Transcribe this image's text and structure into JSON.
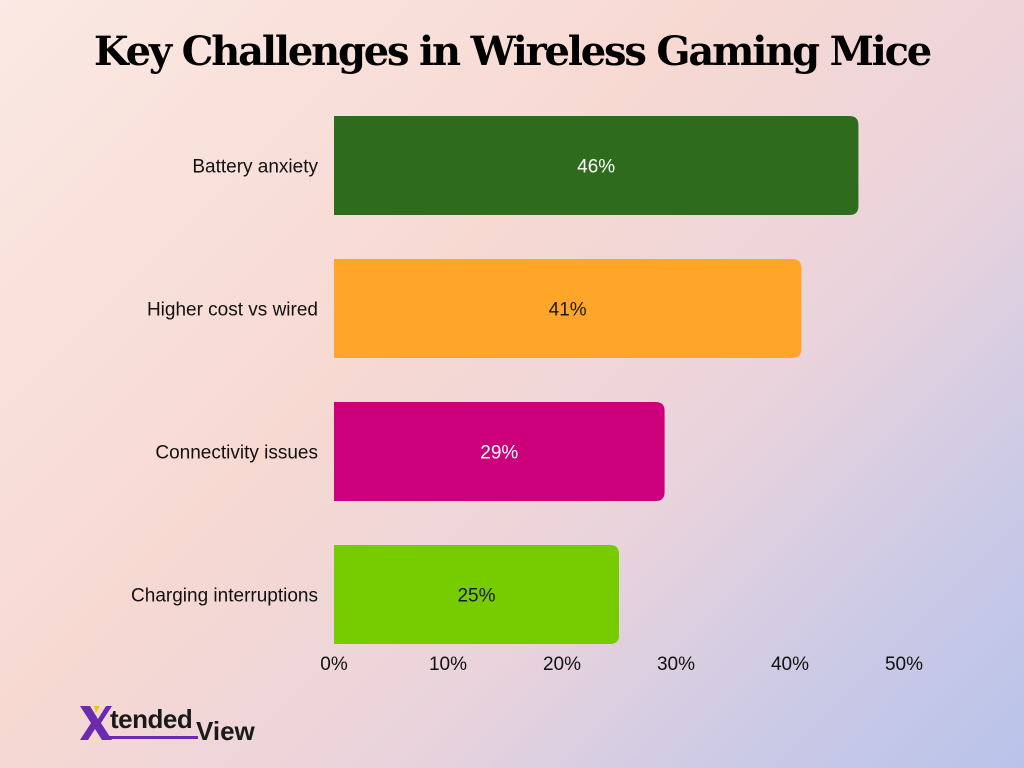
{
  "chart_data": {
    "type": "bar",
    "orientation": "horizontal",
    "title": "Key Challenges in Wireless Gaming Mice",
    "categories": [
      "Battery anxiety",
      "Higher cost vs wired",
      "Connectivity issues",
      "Charging interruptions"
    ],
    "values": [
      46,
      41,
      29,
      25
    ],
    "value_labels": [
      "46%",
      "41%",
      "29%",
      "25%"
    ],
    "colors": [
      "#2e6b1c",
      "#ffa629",
      "#cc007a",
      "#77cc00"
    ],
    "label_colors": [
      "#ffffff",
      "#1a1a1a",
      "#ffffff",
      "#1a1a1a"
    ],
    "xlim": [
      0,
      50
    ],
    "x_ticks": [
      0,
      10,
      20,
      30,
      40,
      50
    ],
    "x_tick_labels": [
      "0%",
      "10%",
      "20%",
      "30%",
      "40%",
      "50%"
    ],
    "grid": false,
    "legend": "none"
  },
  "logo": {
    "mark": "X",
    "text": "tended",
    "text2": "View",
    "colors": [
      "#6a2bb0",
      "#f2c21b"
    ]
  }
}
